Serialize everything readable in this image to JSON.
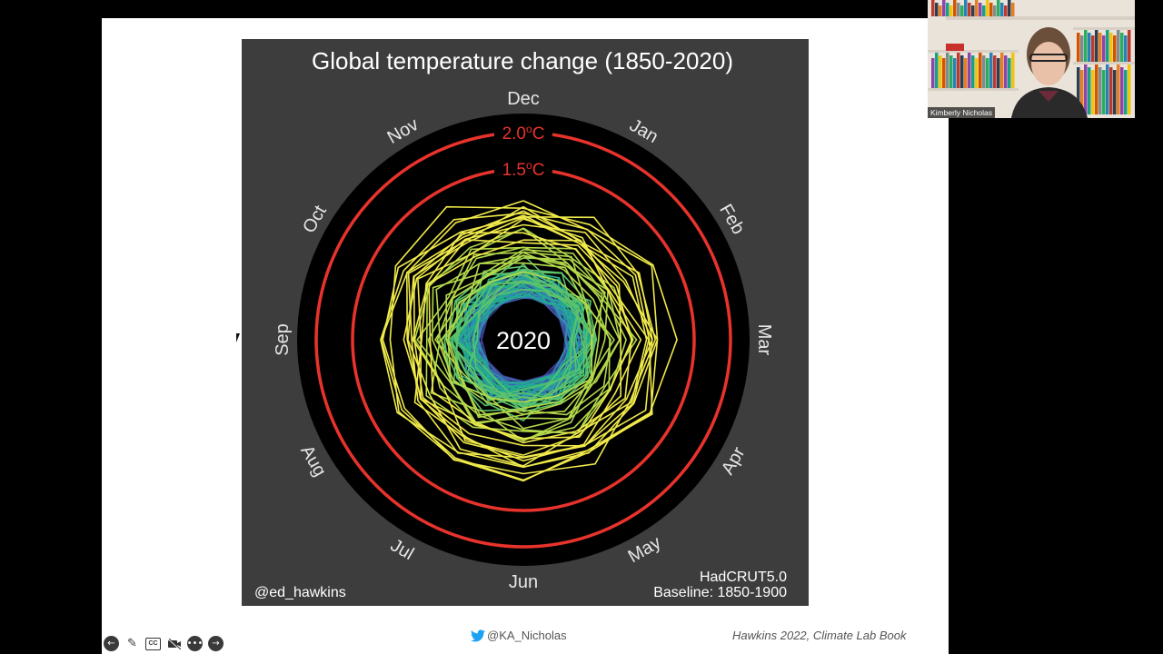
{
  "slide": {
    "footer_handle": "@KA_Nicholas",
    "footer_citation": "Hawkins 2022, Climate Lab Book"
  },
  "webcam": {
    "participant_name": "Kimberly Nicholas"
  },
  "toolbar": {
    "icons": [
      "back-arrow-icon",
      "pen-icon",
      "captions-icon",
      "video-off-icon",
      "more-icon",
      "forward-arrow-icon"
    ],
    "cc_label": "CC"
  },
  "colors": {
    "chart_background": "#3d3d3d",
    "plot_disc": "#000000",
    "threshold_ring": "#e8332c",
    "twitter_blue": "#1da1f2",
    "palette": [
      "#3b3b8f",
      "#3f5fa8",
      "#2f8fb0",
      "#22ad8c",
      "#5cc36b",
      "#b3d84a",
      "#f0ea4a"
    ]
  },
  "chart_data": {
    "type": "line",
    "projection": "polar",
    "title": "Global temperature change (1850-2020)",
    "center_label": "2020",
    "months": [
      "Dec",
      "Jan",
      "Feb",
      "Mar",
      "Apr",
      "May",
      "Jun",
      "Jul",
      "Aug",
      "Sep",
      "Oct",
      "Nov"
    ],
    "thresholds": [
      {
        "label": "2.0",
        "unit": "C",
        "value": 2.0
      },
      {
        "label": "1.5",
        "unit": "C",
        "value": 1.5
      }
    ],
    "year_range": [
      1850,
      2020
    ],
    "anomaly_range": [
      -1.0,
      2.0
    ],
    "source": "HadCRUT5.0",
    "baseline": "Baseline: 1850-1900",
    "credit": "@ed_hawkins",
    "colormap": "viridis"
  }
}
